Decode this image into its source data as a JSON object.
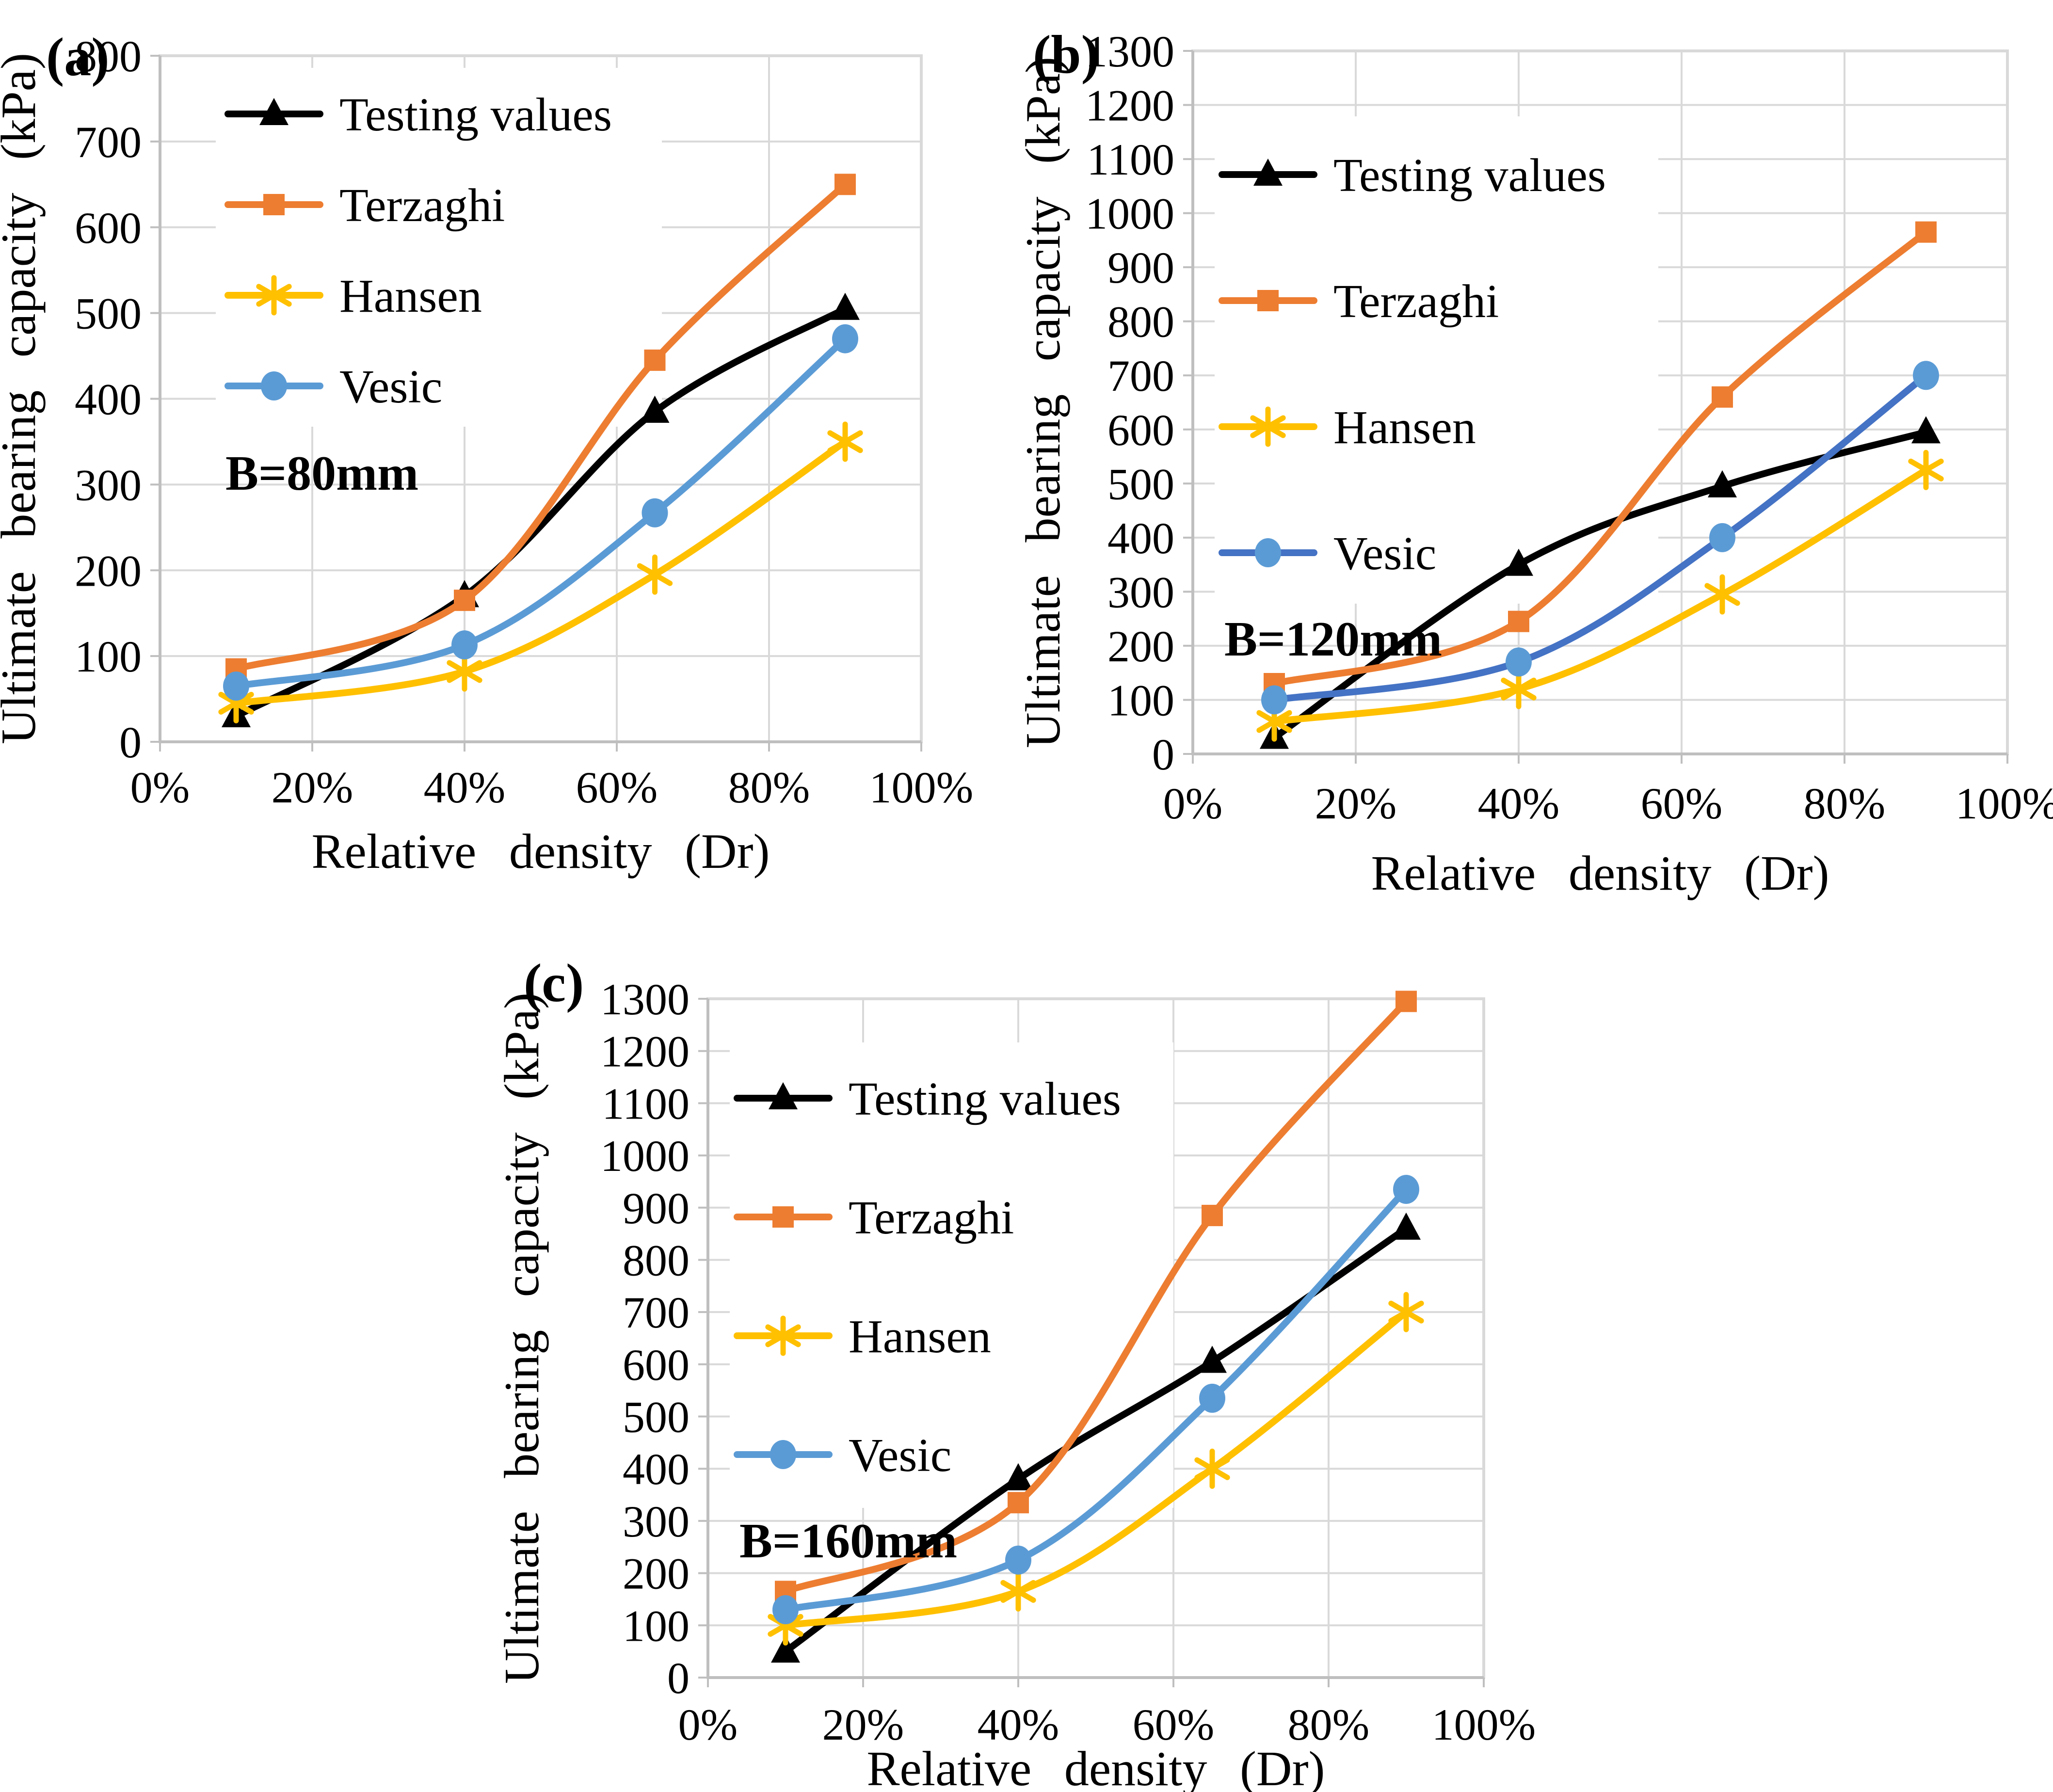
{
  "figure": {
    "background": "#ffffff",
    "grid_color": "#D9D9D9",
    "axis_color": "#BFBFBF",
    "x_axis_title": "Relative density (Dr)",
    "y_axis_title": "Ultimate bearing capacity (kPa)"
  },
  "chart_data": [
    {
      "id": "a",
      "type": "line",
      "panel_label": "(a)",
      "annotation": "B=80mm",
      "xlabel": "Relative density (Dr)",
      "ylabel": "Ultimate bearing capacity (kPa)",
      "xlim": [
        0,
        100
      ],
      "ylim": [
        0,
        800
      ],
      "y_step": 100,
      "x_tick_labels": [
        "0%",
        "20%",
        "40%",
        "60%",
        "80%",
        "100%"
      ],
      "y_tick_labels": [
        "0",
        "100",
        "200",
        "300",
        "400",
        "500",
        "600",
        "700",
        "800"
      ],
      "grid": true,
      "legend_position": "top-left",
      "legend_text_color": "#000000",
      "x": [
        10,
        40,
        65,
        90
      ],
      "series": [
        {
          "name": "Testing values",
          "line_color": "#000000",
          "marker": "triangle",
          "marker_color": "#000000",
          "values": [
            30,
            170,
            385,
            505
          ]
        },
        {
          "name": "Terzaghi",
          "line_color": "#ED7D31",
          "marker": "square",
          "marker_color": "#ED7D31",
          "values": [
            85,
            165,
            445,
            650
          ]
        },
        {
          "name": "Hansen",
          "line_color": "#FFC000",
          "marker": "asterisk",
          "marker_color": "#FFC000",
          "values": [
            45,
            82,
            195,
            350
          ]
        },
        {
          "name": "Vesic",
          "line_color": "#5B9BD5",
          "marker": "circle",
          "marker_color": "#5B9BD5",
          "values": [
            65,
            113,
            267,
            470
          ]
        }
      ]
    },
    {
      "id": "b",
      "type": "line",
      "panel_label": "(b)",
      "annotation": "B=120mm",
      "xlabel": "Relative density (Dr)",
      "ylabel": "Ultimate bearing capacity (kPa)",
      "xlim": [
        0,
        100
      ],
      "ylim": [
        0,
        1300
      ],
      "y_step": 100,
      "x_tick_labels": [
        "0%",
        "20%",
        "40%",
        "60%",
        "80%",
        "100%"
      ],
      "y_tick_labels": [
        "0",
        "100",
        "200",
        "300",
        "400",
        "500",
        "600",
        "700",
        "800",
        "900",
        "1000",
        "1100",
        "1200",
        "1300"
      ],
      "grid": true,
      "legend_position": "top-left",
      "legend_text_color": "#595959",
      "x": [
        10,
        40,
        65,
        90
      ],
      "series": [
        {
          "name": "Testing values",
          "line_color": "#000000",
          "marker": "triangle",
          "marker_color": "#000000",
          "values": [
            30,
            350,
            495,
            595
          ]
        },
        {
          "name": "Terzaghi",
          "line_color": "#ED7D31",
          "marker": "square",
          "marker_color": "#ED7D31",
          "values": [
            130,
            245,
            660,
            965
          ]
        },
        {
          "name": "Hansen",
          "line_color": "#FFC000",
          "marker": "asterisk",
          "marker_color": "#FFC000",
          "values": [
            60,
            120,
            295,
            525
          ]
        },
        {
          "name": "Vesic",
          "line_color": "#4472C4",
          "marker": "circle",
          "marker_color": "#5B9BD5",
          "values": [
            100,
            170,
            400,
            700
          ]
        }
      ]
    },
    {
      "id": "c",
      "type": "line",
      "panel_label": "(c)",
      "annotation": "B=160mm",
      "xlabel": "Relative density (Dr)",
      "ylabel": "Ultimate bearing capacity (kPa)",
      "xlim": [
        0,
        100
      ],
      "ylim": [
        0,
        1300
      ],
      "y_step": 100,
      "x_tick_labels": [
        "0%",
        "20%",
        "40%",
        "60%",
        "80%",
        "100%"
      ],
      "y_tick_labels": [
        "0",
        "100",
        "200",
        "300",
        "400",
        "500",
        "600",
        "700",
        "800",
        "900",
        "1000",
        "1100",
        "1200",
        "1300"
      ],
      "grid": true,
      "legend_position": "top-left",
      "legend_text_color": "#595959",
      "x": [
        10,
        40,
        65,
        90
      ],
      "series": [
        {
          "name": "Testing values",
          "line_color": "#000000",
          "marker": "triangle",
          "marker_color": "#000000",
          "values": [
            50,
            380,
            605,
            860
          ]
        },
        {
          "name": "Terzaghi",
          "line_color": "#ED7D31",
          "marker": "square",
          "marker_color": "#ED7D31",
          "values": [
            165,
            335,
            885,
            1295
          ]
        },
        {
          "name": "Hansen",
          "line_color": "#FFC000",
          "marker": "asterisk",
          "marker_color": "#FFC000",
          "values": [
            100,
            165,
            400,
            700
          ]
        },
        {
          "name": "Vesic",
          "line_color": "#5B9BD5",
          "marker": "circle",
          "marker_color": "#5B9BD5",
          "values": [
            130,
            225,
            535,
            935
          ]
        }
      ]
    }
  ]
}
